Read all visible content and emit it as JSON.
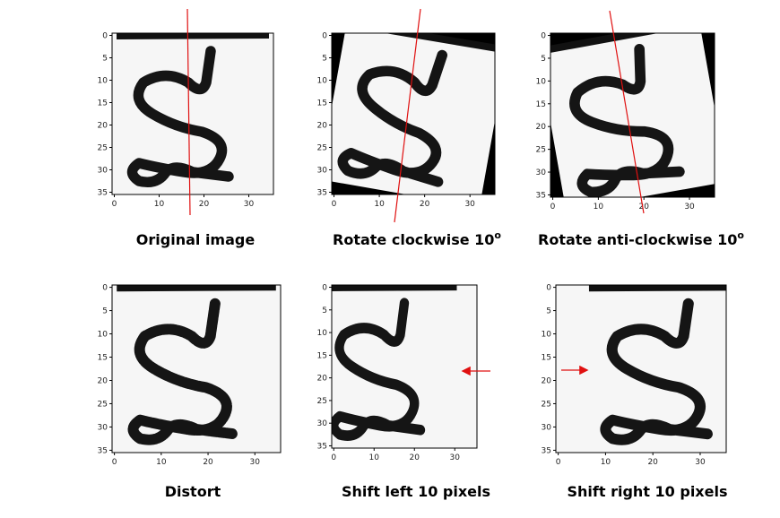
{
  "axes": {
    "xticks": [
      0,
      10,
      20,
      30
    ],
    "yticks": [
      0,
      5,
      10,
      15,
      20,
      25,
      30,
      35
    ]
  },
  "panels": [
    {
      "caption": "Original image"
    },
    {
      "caption": "Rotate clockwise 10",
      "caption_sup": "o"
    },
    {
      "caption": "Rotate anti-clockwise 10",
      "caption_sup": "o"
    },
    {
      "caption": "Distort"
    },
    {
      "caption": "Shift left 10 pixels"
    },
    {
      "caption": "Shift right 10 pixels"
    }
  ]
}
